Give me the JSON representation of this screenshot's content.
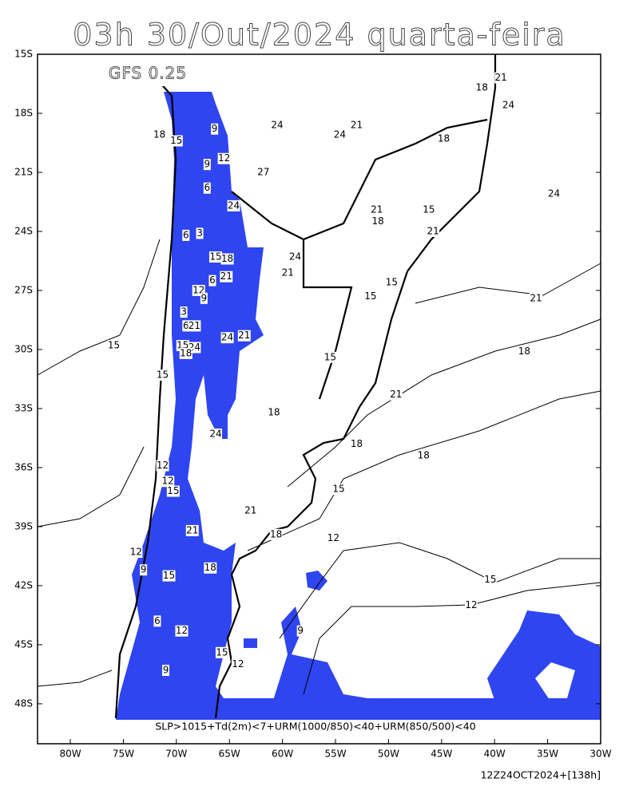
{
  "header": {
    "title": "03h 30/Out/2024 quarta-feira",
    "model": "GFS 0.25"
  },
  "map": {
    "lon_range": [
      -83.09,
      -30
    ],
    "lat_range": [
      -15,
      -50.03
    ],
    "lon_ticks": [
      {
        "value": -80,
        "label": "80W"
      },
      {
        "value": -75,
        "label": "75W"
      },
      {
        "value": -70,
        "label": "70W"
      },
      {
        "value": -65,
        "label": "65W"
      },
      {
        "value": -60,
        "label": "60W"
      },
      {
        "value": -55,
        "label": "55W"
      },
      {
        "value": -50,
        "label": "50W"
      },
      {
        "value": -45,
        "label": "45W"
      },
      {
        "value": -40,
        "label": "40W"
      },
      {
        "value": -35,
        "label": "35W"
      },
      {
        "value": -30,
        "label": "30W"
      }
    ],
    "lat_ticks": [
      {
        "value": -15,
        "label": "15S"
      },
      {
        "value": -18,
        "label": "18S"
      },
      {
        "value": -21,
        "label": "21S"
      },
      {
        "value": -24,
        "label": "24S"
      },
      {
        "value": -27,
        "label": "27S"
      },
      {
        "value": -30,
        "label": "30S"
      },
      {
        "value": -33,
        "label": "33S"
      },
      {
        "value": -36,
        "label": "36S"
      },
      {
        "value": -39,
        "label": "39S"
      },
      {
        "value": -42,
        "label": "42S"
      },
      {
        "value": -45,
        "label": "45S"
      },
      {
        "value": -48,
        "label": "48S"
      }
    ],
    "contour_labels": [
      {
        "value": 18,
        "lon": -41.2,
        "lat": -16.7
      },
      {
        "value": 21,
        "lon": -39.4,
        "lat": -16.2
      },
      {
        "value": 24,
        "lon": -38.7,
        "lat": -17.6
      },
      {
        "value": 24,
        "lon": -60.5,
        "lat": -18.6
      },
      {
        "value": 21,
        "lon": -53.0,
        "lat": -18.6
      },
      {
        "value": 24,
        "lon": -54.6,
        "lat": -19.1
      },
      {
        "value": 18,
        "lon": -44.8,
        "lat": -19.3
      },
      {
        "value": 18,
        "lon": -71.6,
        "lat": -19.1
      },
      {
        "value": 15,
        "lon": -70.0,
        "lat": -19.4
      },
      {
        "value": 9,
        "lon": -66.4,
        "lat": -18.8
      },
      {
        "value": 12,
        "lon": -65.5,
        "lat": -20.3
      },
      {
        "value": 9,
        "lon": -67.1,
        "lat": -20.6
      },
      {
        "value": 27,
        "lon": -61.8,
        "lat": -21.0
      },
      {
        "value": 6,
        "lon": -67.1,
        "lat": -21.8
      },
      {
        "value": 24,
        "lon": -64.6,
        "lat": -22.7
      },
      {
        "value": 24,
        "lon": -34.4,
        "lat": -22.1
      },
      {
        "value": 21,
        "lon": -51.1,
        "lat": -22.9
      },
      {
        "value": 18,
        "lon": -51.0,
        "lat": -23.5
      },
      {
        "value": 15,
        "lon": -46.2,
        "lat": -22.9
      },
      {
        "value": 21,
        "lon": -45.8,
        "lat": -24.0
      },
      {
        "value": 6,
        "lon": -69.1,
        "lat": -24.2
      },
      {
        "value": 3,
        "lon": -67.8,
        "lat": -24.1
      },
      {
        "value": 15,
        "lon": -66.3,
        "lat": -25.3
      },
      {
        "value": 18,
        "lon": -65.2,
        "lat": -25.4
      },
      {
        "value": 24,
        "lon": -58.8,
        "lat": -25.3
      },
      {
        "value": 21,
        "lon": -59.5,
        "lat": -26.1
      },
      {
        "value": 21,
        "lon": -65.3,
        "lat": -26.3
      },
      {
        "value": 6,
        "lon": -66.6,
        "lat": -26.5
      },
      {
        "value": 15,
        "lon": -49.7,
        "lat": -26.6
      },
      {
        "value": 12,
        "lon": -67.9,
        "lat": -27.0
      },
      {
        "value": 9,
        "lon": -67.4,
        "lat": -27.4
      },
      {
        "value": 15,
        "lon": -51.7,
        "lat": -27.3
      },
      {
        "value": 21,
        "lon": -36.1,
        "lat": -27.4
      },
      {
        "value": 3,
        "lon": -69.3,
        "lat": -28.1
      },
      {
        "value": 6,
        "lon": -69.1,
        "lat": -28.8
      },
      {
        "value": 21,
        "lon": -68.3,
        "lat": -28.8
      },
      {
        "value": 24,
        "lon": -65.2,
        "lat": -29.4
      },
      {
        "value": 21,
        "lon": -63.6,
        "lat": -29.3
      },
      {
        "value": 15,
        "lon": -75.9,
        "lat": -29.8
      },
      {
        "value": 15,
        "lon": -69.4,
        "lat": -29.8
      },
      {
        "value": 24,
        "lon": -68.3,
        "lat": -29.9
      },
      {
        "value": 18,
        "lon": -69.1,
        "lat": -30.2
      },
      {
        "value": 18,
        "lon": -37.2,
        "lat": -30.1
      },
      {
        "value": 15,
        "lon": -55.5,
        "lat": -30.4
      },
      {
        "value": 15,
        "lon": -71.3,
        "lat": -31.3
      },
      {
        "value": 21,
        "lon": -49.3,
        "lat": -32.3
      },
      {
        "value": 18,
        "lon": -60.8,
        "lat": -33.2
      },
      {
        "value": 24,
        "lon": -66.3,
        "lat": -34.3
      },
      {
        "value": 18,
        "lon": -53.0,
        "lat": -34.8
      },
      {
        "value": 18,
        "lon": -46.7,
        "lat": -35.4
      },
      {
        "value": 12,
        "lon": -71.3,
        "lat": -35.9
      },
      {
        "value": 12,
        "lon": -70.8,
        "lat": -36.7
      },
      {
        "value": 15,
        "lon": -70.3,
        "lat": -37.2
      },
      {
        "value": 15,
        "lon": -54.7,
        "lat": -37.1
      },
      {
        "value": 21,
        "lon": -63.0,
        "lat": -38.2
      },
      {
        "value": 21,
        "lon": -68.5,
        "lat": -39.2
      },
      {
        "value": 18,
        "lon": -60.6,
        "lat": -39.4
      },
      {
        "value": 12,
        "lon": -55.2,
        "lat": -39.6
      },
      {
        "value": 12,
        "lon": -73.8,
        "lat": -40.3
      },
      {
        "value": 9,
        "lon": -73.1,
        "lat": -41.2
      },
      {
        "value": 15,
        "lon": -70.7,
        "lat": -41.5
      },
      {
        "value": 18,
        "lon": -66.8,
        "lat": -41.1
      },
      {
        "value": 15,
        "lon": -40.4,
        "lat": -41.7
      },
      {
        "value": 12,
        "lon": -42.2,
        "lat": -43.0
      },
      {
        "value": 6,
        "lon": -71.8,
        "lat": -43.8
      },
      {
        "value": 12,
        "lon": -69.5,
        "lat": -44.3
      },
      {
        "value": 9,
        "lon": -58.3,
        "lat": -44.3
      },
      {
        "value": 15,
        "lon": -65.7,
        "lat": -45.4
      },
      {
        "value": 12,
        "lon": -64.2,
        "lat": -46.0
      },
      {
        "value": 9,
        "lon": -71.0,
        "lat": -46.3
      }
    ],
    "criteria": "SLP>1015+Td(2m)<7+URM(1000/850)<40+URM(850/500)<40"
  },
  "footer": "12Z24OCT2024+[138h]"
}
